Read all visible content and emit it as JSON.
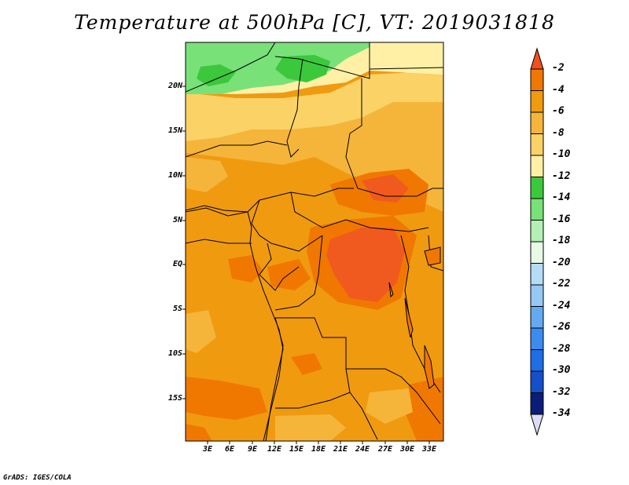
{
  "title": "Temperature at 500hPa [C], VT: 2019031818",
  "credit": "GrADS: IGES/COLA",
  "lat_labels": [
    "20N",
    "15N",
    "10N",
    "5N",
    "EQ",
    "5S",
    "10S",
    "15S"
  ],
  "lon_labels": [
    "3E",
    "6E",
    "9E",
    "12E",
    "15E",
    "18E",
    "21E",
    "24E",
    "27E",
    "30E",
    "33E"
  ],
  "colorbar": {
    "labels": [
      "-2",
      "-4",
      "-6",
      "-8",
      "-10",
      "-12",
      "-14",
      "-16",
      "-18",
      "-20",
      "-22",
      "-24",
      "-26",
      "-28",
      "-30",
      "-32",
      "-34"
    ],
    "colors": [
      "#f0501e",
      "#f07800",
      "#f09a10",
      "#f5b53a",
      "#fad266",
      "#fff0a5",
      "#3cc83c",
      "#78e178",
      "#b4f0b4",
      "#e6fae6",
      "#b5dcf5",
      "#96c8f5",
      "#64aaf0",
      "#3c8cf0",
      "#1e6ee6",
      "#1450c8",
      "#0a1e78",
      "#dcdcf5"
    ]
  },
  "regions": {
    "green_dark": "#3cc83c",
    "green_mid": "#78e178",
    "yellow_light": "#fff0a5",
    "yellow": "#fad266",
    "orange_light": "#f5b53a",
    "orange": "#f09a10",
    "orange_dark": "#f07800",
    "red_orange": "#f05a1e"
  }
}
